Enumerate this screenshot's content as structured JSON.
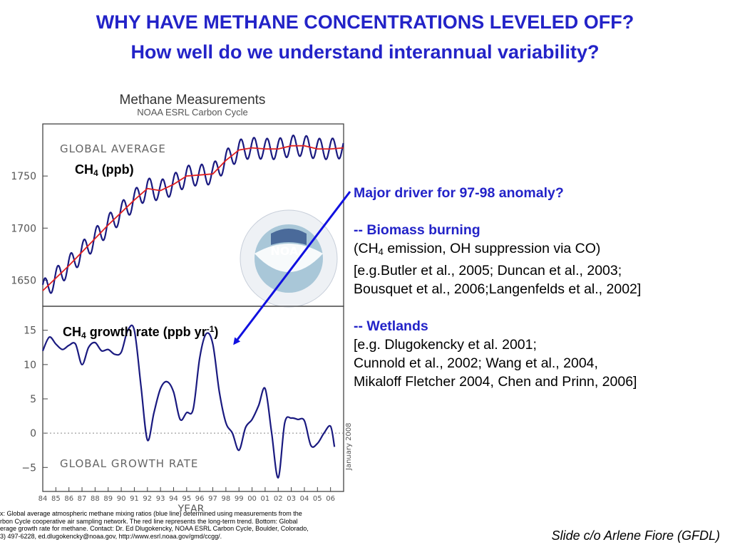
{
  "slide": {
    "title_line1": "WHY HAVE METHANE CONCENTRATIONS LEVELED OFF?",
    "title_line2": "How well do we understand interannual variability?",
    "credit": "Slide c/o Arlene Fiore (GFDL)"
  },
  "figure": {
    "title": "Methane Measurements",
    "subtitle": "NOAA ESRL Carbon Cycle",
    "logo_text": "NOAA",
    "date_stamp": "January 2008",
    "xlabel": "YEAR",
    "caption_lines": [
      "x:  Global average atmospheric methane mixing ratios (blue line) determined using measurements from the",
      "rbon Cycle cooperative air sampling network.  The red line represents the long-term trend.  Bottom:  Global",
      "erage growth rate for methane.  Contact:  Dr. Ed Dlugokencky, NOAA ESRL Carbon Cycle, Boulder, Colorado,",
      "3) 497-6228, ed.dlugokencky@noaa.gov, http://www.esrl.noaa.gov/gmd/ccgg/."
    ],
    "top_overlay": {
      "species": "CH",
      "sub": "4",
      "rest": " (ppb)"
    },
    "bottom_overlay": {
      "species": "CH",
      "sub": "4",
      "rest": " growth rate (ppb yr",
      "sup": "-1",
      "close": ")"
    },
    "colors": {
      "measured": "#1a1a80",
      "trend": "#e02020",
      "arrow": "#1010e0",
      "title_blue": "#2323c8"
    }
  },
  "right_panel": {
    "question": "Major driver for 97-98 anomaly?",
    "biomass_heading": "-- Biomass burning",
    "biomass_line1_pre": "(CH",
    "biomass_line1_sub": "4",
    "biomass_line1_post": " emission, OH suppression via CO)",
    "biomass_line2": "[e.g.Butler et al., 2005; Duncan et al., 2003;",
    "biomass_line3": "Bousquet et al., 2006;Langenfelds et al., 2002]",
    "wetlands_heading": "-- Wetlands",
    "wetlands_line1": "[e.g. Dlugokencky et al. 2001;",
    "wetlands_line2": "Cunnold et al., 2002; Wang et al., 2004,",
    "wetlands_line3": "Mikaloff Fletcher 2004, Chen and Prinn, 2006]"
  },
  "chart_data": [
    {
      "type": "line",
      "panel_label": "GLOBAL AVERAGE",
      "xlim": [
        1984,
        2007
      ],
      "ylim": [
        1625,
        1800
      ],
      "yticks": [
        1650,
        1700,
        1750
      ],
      "grid": false,
      "series": [
        {
          "name": "measured",
          "x": [
            1984,
            1985,
            1986,
            1987,
            1988,
            1989,
            1990,
            1991,
            1992,
            1993,
            1994,
            1995,
            1996,
            1997,
            1998,
            1999,
            2000,
            2001,
            2002,
            2003,
            2004,
            2005,
            2006,
            2007
          ],
          "y": [
            1640,
            1652,
            1664,
            1677,
            1690,
            1703,
            1715,
            1727,
            1738,
            1736,
            1742,
            1750,
            1751,
            1752,
            1765,
            1775,
            1777,
            1776,
            1776,
            1779,
            1779,
            1776,
            1776,
            1777
          ],
          "seasonal_amplitude_ppb": 10
        },
        {
          "name": "trend",
          "x": [
            1984,
            1985,
            1986,
            1987,
            1988,
            1989,
            1990,
            1991,
            1992,
            1993,
            1994,
            1995,
            1996,
            1997,
            1998,
            1999,
            2000,
            2001,
            2002,
            2003,
            2004,
            2005,
            2006,
            2007
          ],
          "y": [
            1640,
            1652,
            1664,
            1677,
            1690,
            1703,
            1715,
            1727,
            1738,
            1736,
            1742,
            1750,
            1751,
            1752,
            1765,
            1775,
            1777,
            1776,
            1776,
            1779,
            1779,
            1776,
            1776,
            1777
          ]
        }
      ]
    },
    {
      "type": "line",
      "panel_label": "GLOBAL GROWTH RATE",
      "xlim": [
        1984,
        2007
      ],
      "ylim": [
        -8.5,
        18.5
      ],
      "yticks": [
        -5,
        0,
        5,
        10,
        15
      ],
      "zero_line": "dotted",
      "grid": false,
      "xtick_labels": [
        "84",
        "85",
        "86",
        "87",
        "88",
        "89",
        "90",
        "91",
        "92",
        "93",
        "94",
        "95",
        "96",
        "97",
        "98",
        "99",
        "00",
        "01",
        "02",
        "03",
        "04",
        "05",
        "06"
      ],
      "series": [
        {
          "name": "growth rate",
          "x": [
            1984.0,
            1984.5,
            1985.0,
            1985.5,
            1986.0,
            1986.5,
            1987.0,
            1987.5,
            1988.0,
            1988.5,
            1989.0,
            1989.5,
            1990.0,
            1990.5,
            1991.0,
            1991.5,
            1992.0,
            1992.5,
            1993.0,
            1993.5,
            1994.0,
            1994.5,
            1995.0,
            1995.5,
            1996.0,
            1996.5,
            1997.0,
            1997.5,
            1998.0,
            1998.5,
            1999.0,
            1999.5,
            2000.0,
            2000.5,
            2001.0,
            2001.5,
            2002.0,
            2002.5,
            2003.0,
            2003.5,
            2004.0,
            2004.5,
            2005.0,
            2005.5,
            2006.0,
            2006.3
          ],
          "y": [
            12,
            14,
            13,
            12.2,
            12.8,
            13,
            10,
            12.5,
            13.2,
            12,
            12.2,
            11.5,
            11.8,
            15,
            15,
            7,
            -1,
            3,
            6.5,
            7.5,
            6,
            2,
            3,
            3.5,
            11,
            14.5,
            13,
            6,
            1.5,
            0,
            -2.5,
            0.8,
            2,
            4,
            6.5,
            0,
            -6.5,
            1.5,
            2.2,
            2,
            1.8,
            -1.8,
            -1.5,
            0,
            1,
            -2
          ]
        }
      ]
    }
  ]
}
